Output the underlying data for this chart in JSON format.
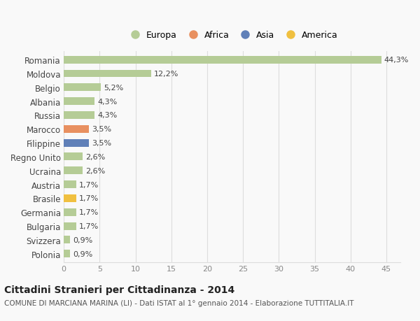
{
  "categories": [
    "Polonia",
    "Svizzera",
    "Bulgaria",
    "Germania",
    "Brasile",
    "Austria",
    "Ucraina",
    "Regno Unito",
    "Filippine",
    "Marocco",
    "Russia",
    "Albania",
    "Belgio",
    "Moldova",
    "Romania"
  ],
  "values": [
    0.9,
    0.9,
    1.7,
    1.7,
    1.7,
    1.7,
    2.6,
    2.6,
    3.5,
    3.5,
    4.3,
    4.3,
    5.2,
    12.2,
    44.3
  ],
  "labels": [
    "0,9%",
    "0,9%",
    "1,7%",
    "1,7%",
    "1,7%",
    "1,7%",
    "2,6%",
    "2,6%",
    "3,5%",
    "3,5%",
    "4,3%",
    "4,3%",
    "5,2%",
    "12,2%",
    "44,3%"
  ],
  "bar_colors": [
    "#b5cc96",
    "#b5cc96",
    "#b5cc96",
    "#b5cc96",
    "#f0c040",
    "#b5cc96",
    "#b5cc96",
    "#b5cc96",
    "#6080b8",
    "#e89060",
    "#b5cc96",
    "#b5cc96",
    "#b5cc96",
    "#b5cc96",
    "#b5cc96"
  ],
  "legend_labels": [
    "Europa",
    "Africa",
    "Asia",
    "America"
  ],
  "legend_colors": [
    "#b5cc96",
    "#e89060",
    "#6080b8",
    "#f0c040"
  ],
  "title": "Cittadini Stranieri per Cittadinanza - 2014",
  "subtitle": "COMUNE DI MARCIANA MARINA (LI) - Dati ISTAT al 1° gennaio 2014 - Elaborazione TUTTITALIA.IT",
  "xlim": [
    0,
    47
  ],
  "xticks": [
    0,
    5,
    10,
    15,
    20,
    25,
    30,
    35,
    40,
    45
  ],
  "background_color": "#f9f9f9",
  "grid_color": "#dddddd",
  "bar_height": 0.55,
  "label_fontsize": 8.0,
  "ytick_fontsize": 8.5,
  "xtick_fontsize": 8.0
}
